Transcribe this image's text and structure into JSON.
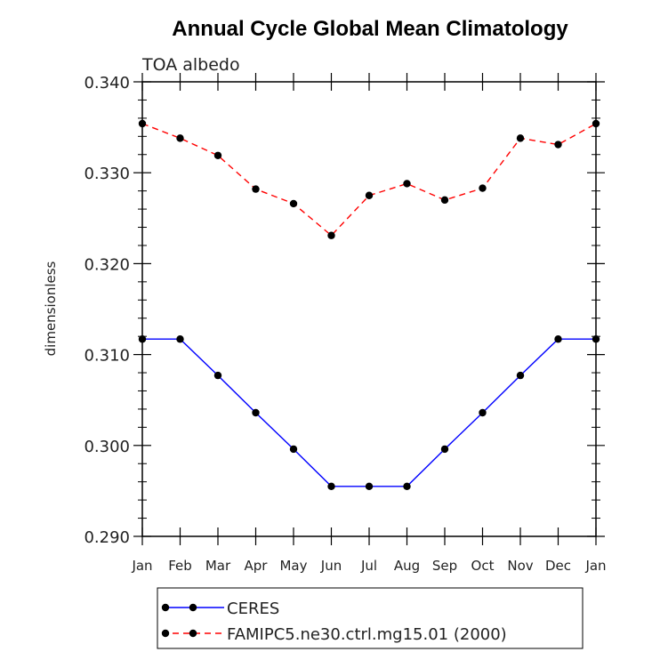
{
  "chart_data": {
    "type": "line",
    "title": "Annual Cycle Global Mean Climatology",
    "subtitle": "TOA albedo",
    "xlabel": "",
    "ylabel": "dimensionless",
    "categories": [
      "Jan",
      "Feb",
      "Mar",
      "Apr",
      "May",
      "Jun",
      "Jul",
      "Aug",
      "Sep",
      "Oct",
      "Nov",
      "Dec",
      "Jan"
    ],
    "ylim": [
      0.29,
      0.34
    ],
    "yticks": [
      "0.290",
      "0.300",
      "0.310",
      "0.320",
      "0.330",
      "0.340"
    ],
    "series": [
      {
        "name": "CERES",
        "color": "#0000ff",
        "style": "solid",
        "marker": "filled-circle",
        "values": [
          0.3117,
          0.3117,
          0.3077,
          0.3036,
          0.2996,
          0.2955,
          0.2955,
          0.2955,
          0.2996,
          0.3036,
          0.3077,
          0.3117,
          0.3117
        ]
      },
      {
        "name": "FAMIPC5.ne30.ctrl.mg15.01 (2000)",
        "color": "#ff0000",
        "style": "dashed",
        "marker": "filled-circle",
        "values": [
          0.3354,
          0.3338,
          0.3319,
          0.3282,
          0.3266,
          0.3231,
          0.3275,
          0.3288,
          0.327,
          0.3283,
          0.3338,
          0.3331,
          0.3354
        ]
      }
    ],
    "grid": false,
    "legend": "bottom"
  }
}
